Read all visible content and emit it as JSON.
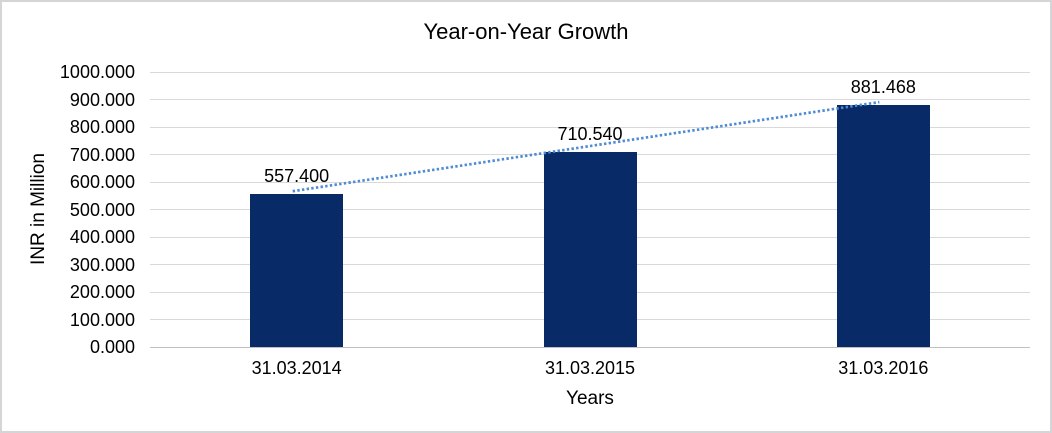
{
  "chart_data": {
    "type": "bar",
    "title": "Year-on-Year Growth",
    "xlabel": "Years",
    "ylabel": "INR in Million",
    "categories": [
      "31.03.2014",
      "31.03.2015",
      "31.03.2016"
    ],
    "values": [
      557.4,
      710.54,
      881.468
    ],
    "value_labels": [
      "557.400",
      "710.540",
      "881.468"
    ],
    "ylim": [
      0,
      1000
    ],
    "ytick_step": 100,
    "ytick_labels": [
      "0.000",
      "100.000",
      "200.000",
      "300.000",
      "400.000",
      "500.000",
      "600.000",
      "700.000",
      "800.000",
      "900.000",
      "1000.000"
    ],
    "grid": true,
    "legend": "none",
    "trendline": {
      "type": "linear",
      "style": "dotted",
      "from_category": "31.03.2014",
      "to_category": "31.03.2016"
    },
    "colors": {
      "bar": "#082a66",
      "trendline": "#4e8bd3",
      "gridline": "#d9d9d9",
      "axis_line": "#c0c0c0",
      "text": "#000000",
      "frame_border": "#d5d5d7",
      "background": "#ffffff"
    }
  }
}
